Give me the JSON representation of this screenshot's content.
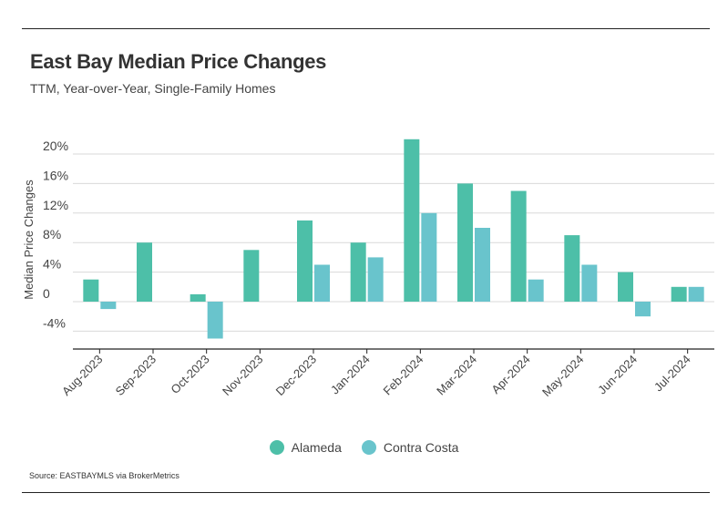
{
  "header": {
    "title": "East Bay Median Price Changes",
    "subtitle": "TTM, Year-over-Year, Single-Family Homes"
  },
  "footer": {
    "source": "Source:  EASTBAYMLS via BrokerMetrics"
  },
  "colors": {
    "alameda": "#4dbfa8",
    "contra_costa": "#69c4cc",
    "grid": "#d9d9d9",
    "axis": "#222222"
  },
  "chart_data": {
    "type": "bar",
    "title": "East Bay Median Price Changes",
    "subtitle": "TTM, Year-over-Year, Single-Family Homes",
    "xlabel": "",
    "ylabel": "Median Price Changes",
    "ylim": [
      -6,
      22
    ],
    "yticks": [
      -4,
      0,
      4,
      8,
      12,
      16,
      20
    ],
    "ytick_labels": [
      "-4%",
      "0",
      "4%",
      "8%",
      "12%",
      "16%",
      "20%"
    ],
    "grid": true,
    "legend_position": "bottom-center",
    "categories": [
      "Aug-2023",
      "Sep-2023",
      "Oct-2023",
      "Nov-2023",
      "Dec-2023",
      "Jan-2024",
      "Feb-2024",
      "Mar-2024",
      "Apr-2024",
      "May-2024",
      "Jun-2024",
      "Jul-2024"
    ],
    "series": [
      {
        "name": "Alameda",
        "values": [
          3,
          8,
          1,
          7,
          11,
          8,
          22,
          16,
          15,
          9,
          4,
          2
        ]
      },
      {
        "name": "Contra Costa",
        "values": [
          -1,
          0,
          -5,
          0,
          5,
          6,
          12,
          10,
          3,
          5,
          -2,
          2
        ]
      }
    ]
  }
}
